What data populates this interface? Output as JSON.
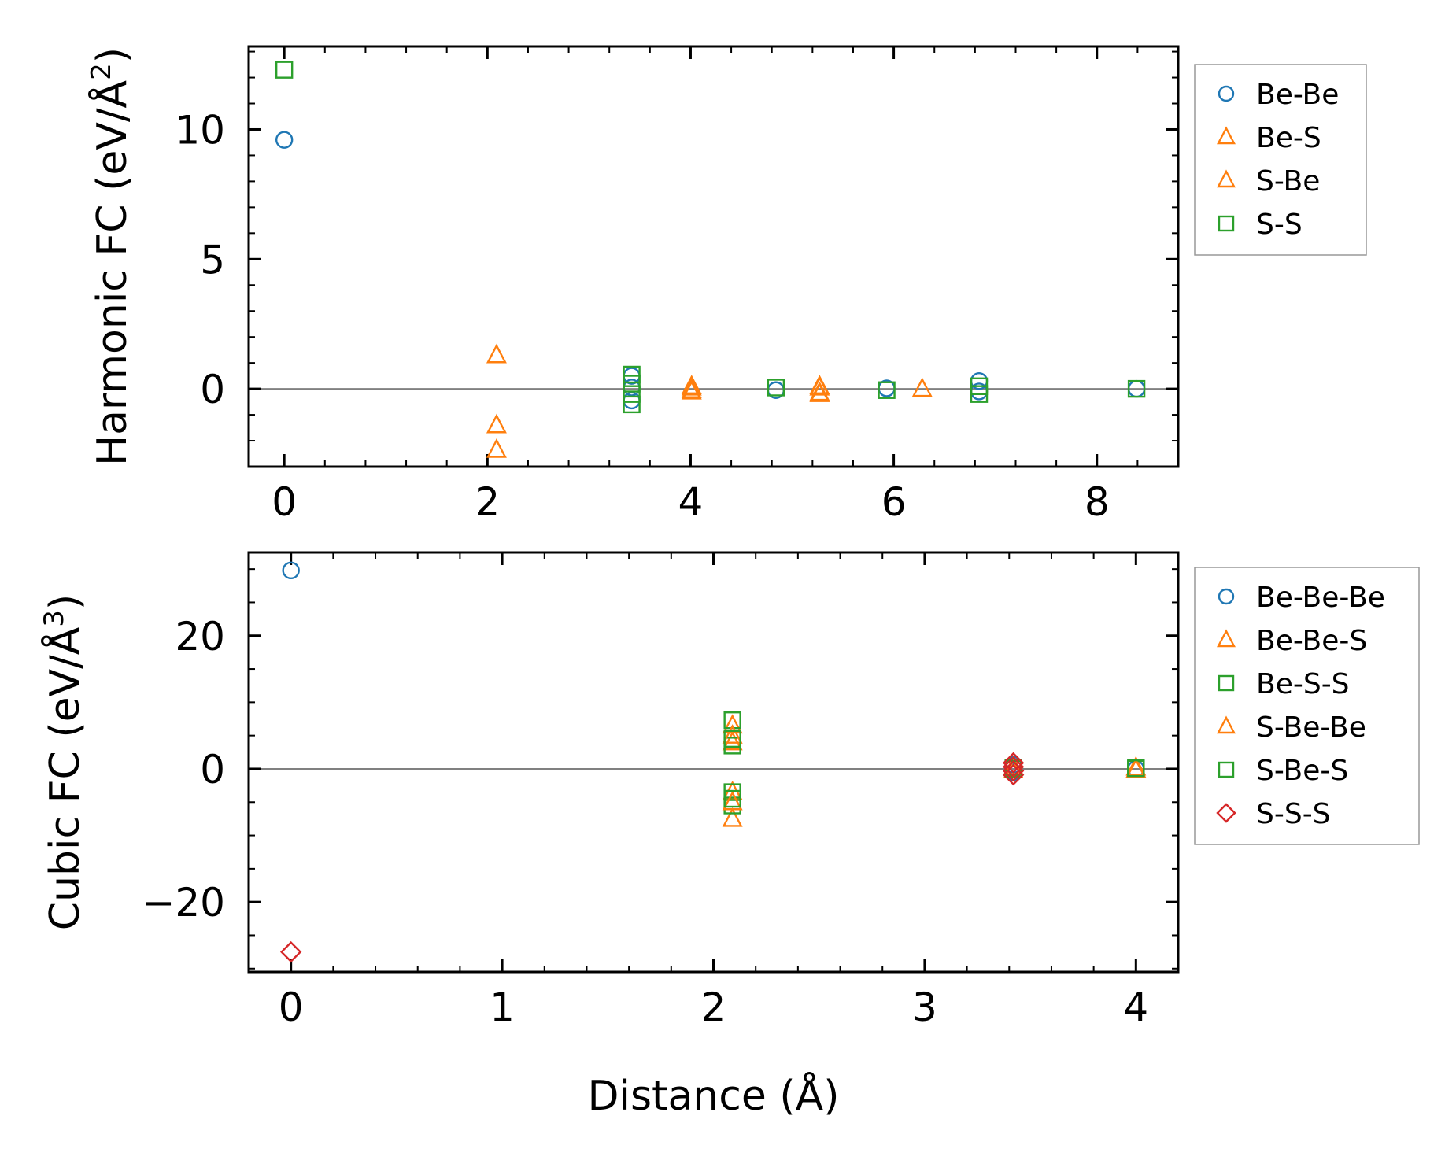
{
  "colors": {
    "blue": "#1f77b4",
    "orange": "#ff7f0e",
    "green": "#2ca02c",
    "red": "#d62728",
    "zero_line": "#808080"
  },
  "chart_data": [
    {
      "type": "scatter",
      "panel": "top",
      "ylabel": "Harmonic FC (eV/Å²)",
      "ylabel_main": "Harmonic FC (eV/Å",
      "ylabel_sup": "2",
      "ylabel_close": ")",
      "xlabel": "",
      "xlim": [
        -0.35,
        8.8
      ],
      "ylim": [
        -3.0,
        13.2
      ],
      "xticks": [
        0,
        2,
        4,
        6,
        8
      ],
      "xtick_labels": [
        "0",
        "2",
        "4",
        "6",
        "8"
      ],
      "yticks": [
        0,
        5,
        10
      ],
      "ytick_labels": [
        "0",
        "5",
        "10"
      ],
      "x_minor": 0.4,
      "y_minor": 1,
      "zero_line": true,
      "legend_position": "outside-right-top",
      "series": [
        {
          "name": "Be-Be",
          "marker": "circle",
          "color": "#1f77b4",
          "points": [
            [
              0,
              9.6
            ],
            [
              3.42,
              0.5
            ],
            [
              3.42,
              0.05
            ],
            [
              3.42,
              -0.45
            ],
            [
              4.84,
              -0.05
            ],
            [
              5.93,
              0.02
            ],
            [
              6.84,
              0.3
            ],
            [
              6.84,
              -0.1
            ],
            [
              8.39,
              0.0
            ]
          ]
        },
        {
          "name": "Be-S",
          "marker": "triangle",
          "color": "#ff7f0e",
          "points": [
            [
              2.09,
              1.3
            ],
            [
              2.09,
              -1.4
            ],
            [
              2.09,
              -2.35
            ],
            [
              4.01,
              0.1
            ],
            [
              4.01,
              -0.05
            ],
            [
              5.27,
              0.1
            ],
            [
              5.27,
              -0.15
            ],
            [
              6.28,
              0.0
            ]
          ]
        },
        {
          "name": "S-Be",
          "marker": "triangle",
          "color": "#ff7f0e",
          "points": [
            [
              4.01,
              0.05
            ],
            [
              4.01,
              -0.1
            ],
            [
              5.27,
              0.05
            ],
            [
              5.27,
              -0.2
            ]
          ]
        },
        {
          "name": "S-S",
          "marker": "square",
          "color": "#2ca02c",
          "points": [
            [
              0,
              12.3
            ],
            [
              3.42,
              0.55
            ],
            [
              3.42,
              0.2
            ],
            [
              3.42,
              -0.2
            ],
            [
              3.42,
              -0.6
            ],
            [
              4.84,
              0.05
            ],
            [
              5.93,
              -0.05
            ],
            [
              6.84,
              0.1
            ],
            [
              6.84,
              -0.2
            ],
            [
              8.39,
              0.0
            ]
          ]
        }
      ]
    },
    {
      "type": "scatter",
      "panel": "bottom",
      "ylabel": "Cubic FC (eV/Å³)",
      "ylabel_main": "Cubic FC (eV/Å",
      "ylabel_sup": "3",
      "ylabel_close": ")",
      "xlabel": "Distance (Å)",
      "xlim": [
        -0.2,
        4.2
      ],
      "ylim": [
        -30.5,
        32.5
      ],
      "xticks": [
        0,
        1,
        2,
        3,
        4
      ],
      "xtick_labels": [
        "0",
        "1",
        "2",
        "3",
        "4"
      ],
      "yticks": [
        -20,
        0,
        20
      ],
      "ytick_labels": [
        "−20",
        "0",
        "20"
      ],
      "x_minor": 0.2,
      "y_minor": 5,
      "zero_line": true,
      "legend_position": "outside-right-top",
      "series": [
        {
          "name": "Be-Be-Be",
          "marker": "circle",
          "color": "#1f77b4",
          "points": [
            [
              0,
              29.8
            ],
            [
              3.42,
              0.6
            ],
            [
              3.42,
              -0.5
            ],
            [
              4.0,
              0.0
            ]
          ]
        },
        {
          "name": "Be-Be-S",
          "marker": "triangle",
          "color": "#ff7f0e",
          "points": [
            [
              2.09,
              6.5
            ],
            [
              2.09,
              4.0
            ],
            [
              2.09,
              -3.5
            ],
            [
              2.09,
              -7.5
            ],
            [
              3.42,
              0.3
            ],
            [
              4.0,
              0.2
            ]
          ]
        },
        {
          "name": "Be-S-S",
          "marker": "square",
          "color": "#2ca02c",
          "points": [
            [
              2.09,
              7.3
            ],
            [
              2.09,
              3.5
            ],
            [
              2.09,
              -3.5
            ],
            [
              2.09,
              -5.5
            ],
            [
              3.42,
              0.2
            ],
            [
              4.0,
              0.0
            ]
          ]
        },
        {
          "name": "S-Be-Be",
          "marker": "triangle",
          "color": "#ff7f0e",
          "points": [
            [
              2.09,
              5.0
            ],
            [
              2.09,
              -5.0
            ],
            [
              3.42,
              -0.2
            ],
            [
              4.0,
              -0.1
            ]
          ]
        },
        {
          "name": "S-Be-S",
          "marker": "square",
          "color": "#2ca02c",
          "points": [
            [
              2.09,
              4.5
            ],
            [
              2.09,
              -4.5
            ],
            [
              3.42,
              0.0
            ],
            [
              4.0,
              0.1
            ]
          ]
        },
        {
          "name": "S-S-S",
          "marker": "diamond",
          "color": "#d62728",
          "points": [
            [
              0,
              -27.5
            ],
            [
              3.42,
              0.9
            ],
            [
              3.42,
              0.3
            ],
            [
              3.42,
              -0.3
            ],
            [
              3.42,
              -0.9
            ]
          ]
        }
      ]
    }
  ]
}
